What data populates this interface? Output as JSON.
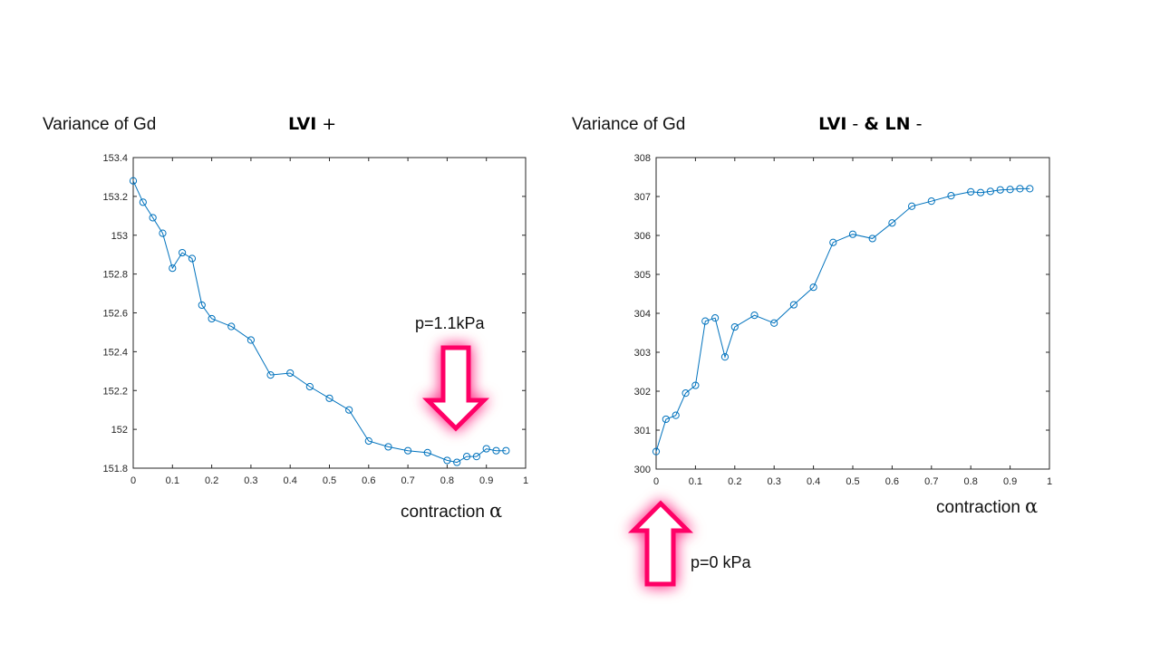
{
  "chart_data": [
    {
      "type": "line",
      "ylabel": "Variance of Gd",
      "title_bold": "LVI",
      "title_suffix": " +",
      "xlabel_text": "contraction",
      "xlabel_symbol": "α",
      "xlim": [
        0,
        1
      ],
      "ylim": [
        151.8,
        153.4
      ],
      "xticks": [
        "0",
        "0.1",
        "0.2",
        "0.3",
        "0.4",
        "0.5",
        "0.6",
        "0.7",
        "0.8",
        "0.9",
        "1"
      ],
      "yticks": [
        "151.8",
        "152",
        "152.2",
        "152.4",
        "152.6",
        "152.8",
        "153",
        "153.2",
        "153.4"
      ],
      "x": [
        0,
        0.025,
        0.05,
        0.075,
        0.1,
        0.125,
        0.15,
        0.175,
        0.2,
        0.25,
        0.3,
        0.35,
        0.4,
        0.45,
        0.5,
        0.55,
        0.6,
        0.65,
        0.7,
        0.75,
        0.8,
        0.825,
        0.85,
        0.875,
        0.9,
        0.925,
        0.95
      ],
      "y": [
        153.28,
        153.17,
        153.09,
        153.01,
        152.83,
        152.91,
        152.88,
        152.64,
        152.57,
        152.53,
        152.46,
        152.28,
        152.29,
        152.22,
        152.16,
        152.1,
        151.94,
        151.91,
        151.89,
        151.88,
        151.84,
        151.83,
        151.86,
        151.86,
        151.9,
        151.89,
        151.89
      ],
      "line_color": "#0072bd",
      "annotation": {
        "text": "p=1.1kPa",
        "arrow": "down",
        "arrow_color": "#ff006e"
      }
    },
    {
      "type": "line",
      "ylabel": "Variance of Gd",
      "title_bold": "LVI",
      "title_suffix": " - ",
      "title_bold2": "& LN",
      "title_suffix2": " -",
      "xlabel_text": "contraction",
      "xlabel_symbol": "α",
      "xlim": [
        0,
        1
      ],
      "ylim": [
        300,
        308
      ],
      "xticks": [
        "0",
        "0.1",
        "0.2",
        "0.3",
        "0.4",
        "0.5",
        "0.6",
        "0.7",
        "0.8",
        "0.9",
        "1"
      ],
      "yticks": [
        "300",
        "301",
        "302",
        "303",
        "304",
        "305",
        "306",
        "307",
        "308"
      ],
      "x": [
        0,
        0.025,
        0.05,
        0.075,
        0.1,
        0.125,
        0.15,
        0.175,
        0.2,
        0.25,
        0.3,
        0.35,
        0.4,
        0.45,
        0.5,
        0.55,
        0.6,
        0.65,
        0.7,
        0.75,
        0.8,
        0.825,
        0.85,
        0.875,
        0.9,
        0.925,
        0.95
      ],
      "y": [
        300.45,
        301.28,
        301.38,
        301.95,
        302.15,
        303.8,
        303.88,
        302.88,
        303.65,
        303.95,
        303.75,
        304.22,
        304.67,
        305.82,
        306.03,
        305.92,
        306.32,
        306.75,
        306.88,
        307.02,
        307.12,
        307.1,
        307.13,
        307.17,
        307.18,
        307.2,
        307.2
      ],
      "line_color": "#0072bd",
      "annotation": {
        "text": "p=0 kPa",
        "arrow": "up",
        "arrow_color": "#ff006e"
      }
    }
  ]
}
